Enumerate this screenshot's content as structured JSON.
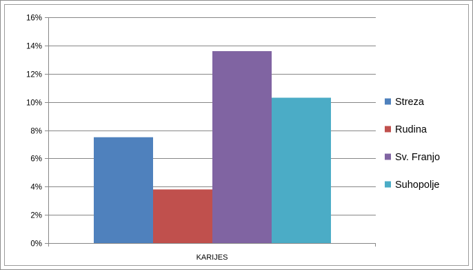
{
  "chart_data": {
    "type": "bar",
    "categories": [
      "KARIJES"
    ],
    "series": [
      {
        "name": "Streza",
        "color": "#4f81bd",
        "values": [
          7.5
        ]
      },
      {
        "name": "Rudina",
        "color": "#c0504d",
        "values": [
          3.8
        ]
      },
      {
        "name": "Sv. Franjo",
        "color": "#8064a2",
        "values": [
          13.6
        ]
      },
      {
        "name": "Suhopolje",
        "color": "#4bacc6",
        "values": [
          10.3
        ]
      }
    ],
    "ylim": [
      0,
      16
    ],
    "yticks": [
      "0%",
      "2%",
      "4%",
      "6%",
      "8%",
      "10%",
      "12%",
      "14%",
      "16%"
    ],
    "y_unit": "%",
    "grid": true,
    "legend_position": "right",
    "title": "",
    "xlabel": "",
    "ylabel": ""
  }
}
